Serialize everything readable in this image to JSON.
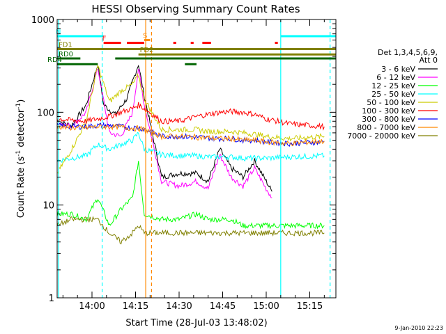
{
  "chart_data": {
    "type": "line",
    "title": "HESSI Observing Summary Count Rates",
    "xlabel": "Start Time (28-Jul-03 13:48:02)",
    "ylabel_main": "Count Rate (s",
    "ylabel_sup": "-1",
    "ylabel_tail": " detector",
    "ylabel_sup2": "-1",
    "ylabel_close": ")",
    "yscale": "log",
    "ylim": [
      1,
      1000
    ],
    "xlim_minutes": [
      0,
      96
    ],
    "x_tick_labels": [
      "14:00",
      "14:15",
      "14:30",
      "14:45",
      "15:00",
      "15:15"
    ],
    "x_tick_minutes": [
      12,
      27,
      42,
      57,
      72,
      87
    ],
    "y_tick_labels": [
      "1",
      "10",
      "100",
      "1000"
    ],
    "y_tick_values": [
      1,
      10,
      100,
      1000
    ],
    "legend_header": [
      "Det 1,3,4,5,6,9,",
      "Att 0"
    ],
    "series": [
      {
        "name": "3 - 6 keV",
        "color": "#000000",
        "points": [
          [
            0,
            80
          ],
          [
            5,
            72
          ],
          [
            10,
            120
          ],
          [
            14,
            330
          ],
          [
            16,
            120
          ],
          [
            20,
            95
          ],
          [
            24,
            140
          ],
          [
            28,
            330
          ],
          [
            30,
            150
          ],
          [
            36,
            20
          ],
          [
            42,
            22
          ],
          [
            48,
            22
          ],
          [
            52,
            18
          ],
          [
            56,
            40
          ],
          [
            60,
            25
          ],
          [
            64,
            20
          ],
          [
            68,
            30
          ],
          [
            72,
            18
          ],
          [
            74,
            14
          ]
        ]
      },
      {
        "name": "6 - 12 keV",
        "color": "#ff00ff",
        "points": [
          [
            0,
            78
          ],
          [
            5,
            70
          ],
          [
            10,
            100
          ],
          [
            14,
            300
          ],
          [
            18,
            60
          ],
          [
            22,
            55
          ],
          [
            26,
            100
          ],
          [
            28,
            300
          ],
          [
            30,
            120
          ],
          [
            36,
            18
          ],
          [
            42,
            16
          ],
          [
            48,
            18
          ],
          [
            52,
            15
          ],
          [
            56,
            35
          ],
          [
            60,
            20
          ],
          [
            64,
            16
          ],
          [
            68,
            25
          ],
          [
            72,
            15
          ],
          [
            74,
            12
          ]
        ]
      },
      {
        "name": "12 - 25 keV",
        "color": "#00ff00",
        "points": [
          [
            0,
            8
          ],
          [
            5,
            8
          ],
          [
            10,
            7
          ],
          [
            14,
            12
          ],
          [
            18,
            6
          ],
          [
            22,
            9
          ],
          [
            26,
            12
          ],
          [
            28,
            30
          ],
          [
            30,
            8
          ],
          [
            36,
            7
          ],
          [
            42,
            7
          ],
          [
            48,
            8
          ],
          [
            52,
            7
          ],
          [
            56,
            7
          ],
          [
            60,
            7
          ],
          [
            64,
            6
          ],
          [
            68,
            6
          ],
          [
            72,
            6
          ],
          [
            80,
            6
          ],
          [
            92,
            6
          ]
        ]
      },
      {
        "name": "25 - 50 keV",
        "color": "#00ffff",
        "points": [
          [
            0,
            30
          ],
          [
            5,
            32
          ],
          [
            10,
            34
          ],
          [
            14,
            45
          ],
          [
            18,
            40
          ],
          [
            22,
            45
          ],
          [
            26,
            50
          ],
          [
            28,
            60
          ],
          [
            30,
            40
          ],
          [
            36,
            35
          ],
          [
            42,
            34
          ],
          [
            48,
            34
          ],
          [
            52,
            33
          ],
          [
            56,
            33
          ],
          [
            60,
            33
          ],
          [
            64,
            32
          ],
          [
            68,
            32
          ],
          [
            72,
            32
          ],
          [
            80,
            33
          ],
          [
            92,
            34
          ]
        ]
      },
      {
        "name": "50 - 100 keV",
        "color": "#cccc00",
        "points": [
          [
            0,
            22
          ],
          [
            5,
            40
          ],
          [
            10,
            80
          ],
          [
            14,
            320
          ],
          [
            18,
            130
          ],
          [
            22,
            170
          ],
          [
            26,
            200
          ],
          [
            28,
            250
          ],
          [
            30,
            140
          ],
          [
            36,
            65
          ],
          [
            42,
            65
          ],
          [
            48,
            65
          ],
          [
            52,
            62
          ],
          [
            56,
            62
          ],
          [
            60,
            62
          ],
          [
            64,
            60
          ],
          [
            68,
            58
          ],
          [
            72,
            55
          ],
          [
            80,
            52
          ],
          [
            92,
            55
          ]
        ]
      },
      {
        "name": "100 - 300 keV",
        "color": "#ff0000",
        "points": [
          [
            0,
            85
          ],
          [
            5,
            82
          ],
          [
            10,
            80
          ],
          [
            14,
            85
          ],
          [
            18,
            90
          ],
          [
            22,
            100
          ],
          [
            26,
            110
          ],
          [
            28,
            120
          ],
          [
            30,
            110
          ],
          [
            36,
            80
          ],
          [
            42,
            80
          ],
          [
            48,
            90
          ],
          [
            52,
            95
          ],
          [
            56,
            100
          ],
          [
            60,
            102
          ],
          [
            64,
            100
          ],
          [
            68,
            95
          ],
          [
            72,
            85
          ],
          [
            80,
            75
          ],
          [
            92,
            70
          ]
        ]
      },
      {
        "name": "300 - 800 keV",
        "color": "#0000ff",
        "points": [
          [
            0,
            72
          ],
          [
            5,
            70
          ],
          [
            10,
            70
          ],
          [
            14,
            72
          ],
          [
            18,
            72
          ],
          [
            22,
            70
          ],
          [
            26,
            68
          ],
          [
            28,
            68
          ],
          [
            30,
            66
          ],
          [
            36,
            55
          ],
          [
            42,
            55
          ],
          [
            48,
            54
          ],
          [
            52,
            53
          ],
          [
            56,
            52
          ],
          [
            60,
            52
          ],
          [
            64,
            50
          ],
          [
            68,
            50
          ],
          [
            72,
            48
          ],
          [
            80,
            46
          ],
          [
            92,
            48
          ]
        ]
      },
      {
        "name": "800 - 7000 keV",
        "color": "#ff8800",
        "points": [
          [
            0,
            70
          ],
          [
            5,
            68
          ],
          [
            10,
            68
          ],
          [
            14,
            70
          ],
          [
            18,
            70
          ],
          [
            22,
            69
          ],
          [
            26,
            67
          ],
          [
            28,
            67
          ],
          [
            30,
            65
          ],
          [
            36,
            55
          ],
          [
            42,
            55
          ],
          [
            48,
            54
          ],
          [
            52,
            53
          ],
          [
            56,
            52
          ],
          [
            60,
            52
          ],
          [
            64,
            50
          ],
          [
            68,
            50
          ],
          [
            72,
            48
          ],
          [
            80,
            46
          ],
          [
            92,
            49
          ]
        ]
      },
      {
        "name": "7000 - 20000 keV",
        "color": "#808000",
        "points": [
          [
            0,
            6
          ],
          [
            5,
            7
          ],
          [
            10,
            7
          ],
          [
            14,
            7
          ],
          [
            18,
            5
          ],
          [
            22,
            4
          ],
          [
            26,
            5
          ],
          [
            28,
            6
          ],
          [
            30,
            5
          ],
          [
            36,
            5
          ],
          [
            42,
            5
          ],
          [
            48,
            5
          ],
          [
            52,
            5
          ],
          [
            56,
            5
          ],
          [
            60,
            5
          ],
          [
            64,
            5
          ],
          [
            68,
            5
          ],
          [
            72,
            5
          ],
          [
            80,
            5
          ],
          [
            92,
            5
          ]
        ]
      }
    ],
    "vertical_lines": [
      {
        "minute": 0.5,
        "color": "#00ffff",
        "style": "solid"
      },
      {
        "minute": 15.5,
        "color": "#00ffff",
        "style": "dashed"
      },
      {
        "minute": 30.5,
        "color": "#ff8800",
        "style": "solid"
      },
      {
        "minute": 32.5,
        "color": "#ff8800",
        "style": "dashed"
      },
      {
        "minute": 77.0,
        "color": "#00ffff",
        "style": "solid"
      },
      {
        "minute": 94.0,
        "color": "#00ffff",
        "style": "dashed"
      }
    ],
    "flag_bars": [
      {
        "label": "N",
        "color": "#00ffff",
        "level": 660,
        "segments": [
          [
            0,
            16
          ],
          [
            77,
            96
          ]
        ]
      },
      {
        "label": "S",
        "color": "#ff8800",
        "level": 600,
        "segments": [
          [
            30,
            32
          ]
        ]
      },
      {
        "label": "F",
        "color": "#ff0000",
        "level": 560,
        "segments": [
          [
            16,
            22
          ],
          [
            24,
            30
          ],
          [
            40,
            41
          ],
          [
            46,
            47
          ],
          [
            50,
            53
          ],
          [
            75,
            76
          ]
        ]
      },
      {
        "label": "FD1",
        "color": "#808000",
        "level": 480,
        "segments": [
          [
            0,
            96
          ]
        ]
      },
      {
        "label": "FD2",
        "color": "#808000",
        "level": 420,
        "segments": [
          [
            28,
            96
          ]
        ]
      },
      {
        "label": "RD0",
        "color": "#006400",
        "level": 380,
        "segments": [
          [
            0,
            8
          ],
          [
            20,
            96
          ]
        ]
      },
      {
        "label": "RD4",
        "color": "#006400",
        "level": 330,
        "segments": [
          [
            0,
            14
          ],
          [
            44,
            48
          ]
        ]
      }
    ],
    "grid": false
  },
  "footer_date": "9-Jan-2010 22:23"
}
